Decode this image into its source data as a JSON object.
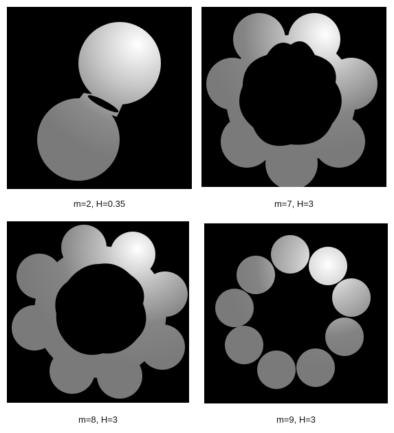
{
  "figure": {
    "panels": [
      {
        "caption": "m=2, H=0.35"
      },
      {
        "caption": "m=7, H=3"
      },
      {
        "caption": "m=8, H=3"
      },
      {
        "caption": "m=9, H=3"
      }
    ]
  },
  "colors": {
    "background": "#000000",
    "shape_dark": "#7a7a7a",
    "shape_light": "#ffffff"
  }
}
